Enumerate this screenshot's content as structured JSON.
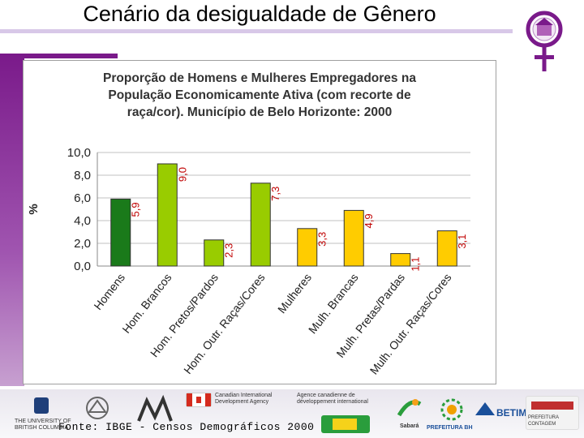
{
  "slide": {
    "title": "Cenário da desigualdade de Gênero",
    "source": "Fonte: IBGE - Censos Demográficos 2000"
  },
  "colors": {
    "accent_purple": "#7a1a8a",
    "dark_green": "#1a7a1a",
    "light_green": "#99cc00",
    "yellow": "#ffcc00",
    "value_label_red": "#c00000"
  },
  "icons": [
    "female-symbol-logo-icon"
  ],
  "sponsors": {
    "canada_line1": "Canadian International",
    "canada_line2": "Development Agency",
    "canada_fr_line1": "Agence canadienne de",
    "canada_fr_line2": "développement international",
    "betim": "BETIM",
    "prefeitura_bh": "PREFEITURA BH",
    "sabara": "Sabará",
    "contagem": "PREFEITURA CONTAGEM",
    "ubc_line1": "THE UNIVERSITY OF",
    "ubc_line2": "BRITISH COLUMBIA"
  },
  "chart_data": {
    "type": "bar",
    "title": "Proporção de Homens e Mulheres Empregadores na População Economicamente Ativa (com recorte de raça/cor). Município de Belo Horizonte: 2000",
    "title_lines": [
      "Proporção de Homens e Mulheres Empregadores na",
      "População Economicamente Ativa (com recorte de",
      "raça/cor). Município de Belo Horizonte: 2000"
    ],
    "ylabel": "%",
    "xlabel": "",
    "ylim": [
      0,
      10
    ],
    "yticks": [
      "0,0",
      "2,0",
      "4,0",
      "6,0",
      "8,0",
      "10,0"
    ],
    "grid": true,
    "categories": [
      "Homens",
      "Hom. Brancos",
      "Hom. Pretos/Pardos",
      "Hom. Outr. Raças/Cores",
      "Mulheres",
      "Mulh. Brancas",
      "Mulh. Pretas/Pardas",
      "Mulh. Outr. Raças/Cores"
    ],
    "values": [
      5.9,
      9.0,
      2.3,
      7.3,
      3.3,
      4.9,
      1.1,
      3.1
    ],
    "value_labels": [
      "5,9",
      "9,0",
      "2,3",
      "7,3",
      "3,3",
      "4,9",
      "1,1",
      "3,1"
    ],
    "bar_colors": [
      "#1a7a1a",
      "#99cc00",
      "#99cc00",
      "#99cc00",
      "#ffcc00",
      "#ffcc00",
      "#ffcc00",
      "#ffcc00"
    ]
  }
}
